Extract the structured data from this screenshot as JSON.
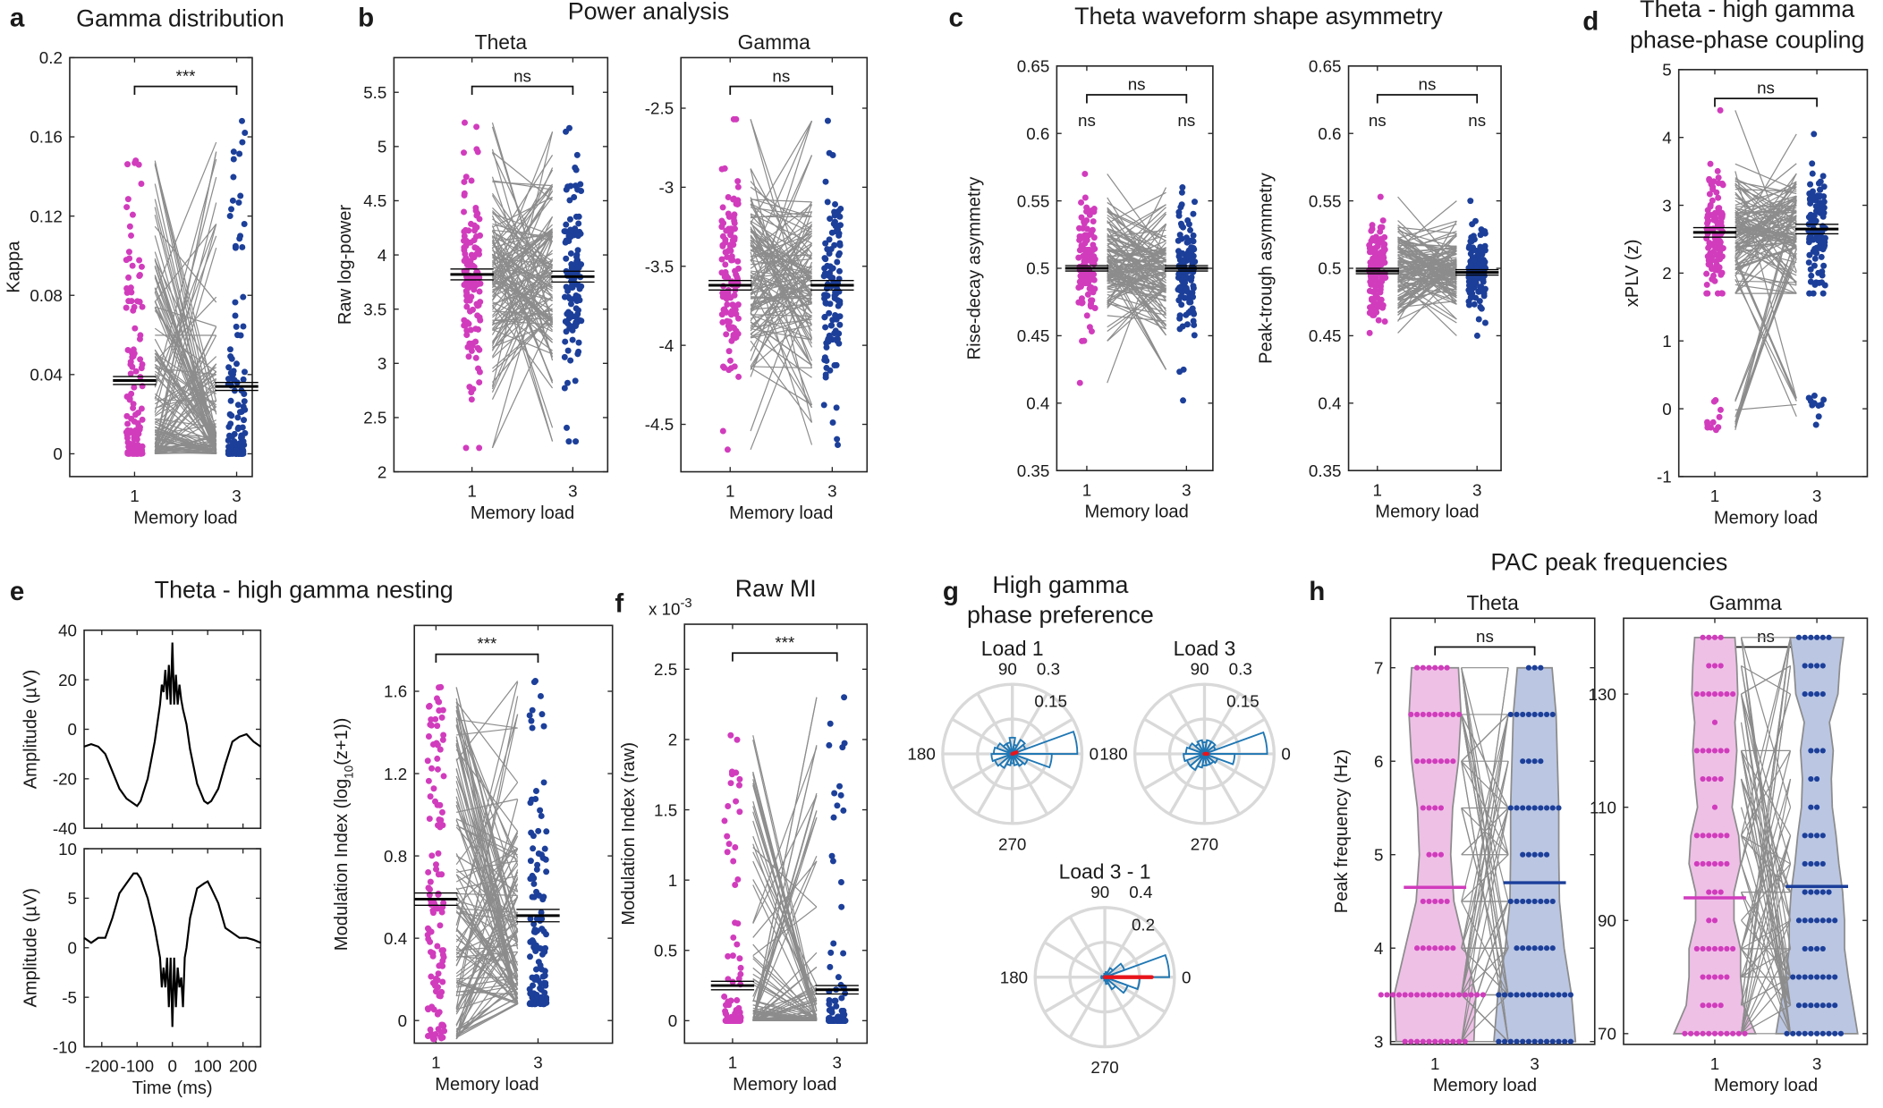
{
  "colors": {
    "load1": "#d13cbd",
    "load3": "#1c3f9a",
    "pair_line": "#8c8c8c",
    "mean_line": "#000000",
    "rose": "#1f77b4",
    "resultant": "#e8141b",
    "polar_grid": "#d9d9d9",
    "violin1": "#eec0e6",
    "violin3": "#bac6e2"
  },
  "chart_data": [
    {
      "panel": "a",
      "type": "scatter",
      "title": "Gamma distribution",
      "xlabel": "Memory load",
      "ylabel": "Kappa",
      "categories": [
        "1",
        "3"
      ],
      "ylim": [
        -0.0115,
        0.2
      ],
      "yticks": [
        0,
        0.04,
        0.08,
        0.12,
        0.16,
        0.2
      ],
      "ytick_labels": [
        "0",
        "0.04",
        "0.08",
        "0.12",
        "0.16",
        "0.2"
      ],
      "significance": "***",
      "groups": [
        {
          "load": "1",
          "mean": 0.037,
          "sem": 0.002,
          "range": [
            0,
            0.148
          ]
        },
        {
          "load": "3",
          "mean": 0.034,
          "sem": 0.002,
          "range": [
            0,
            0.168
          ]
        }
      ]
    },
    {
      "panel": "b",
      "type": "scatter",
      "group_title": "Power analysis",
      "subtitle": "Theta",
      "xlabel": "Memory load",
      "ylabel": "Raw log-power",
      "categories": [
        "1",
        "3"
      ],
      "ylim": [
        2,
        5.82
      ],
      "yticks": [
        2,
        2.5,
        3,
        3.5,
        4,
        4.5,
        5,
        5.5
      ],
      "ytick_labels": [
        "2",
        "2.5",
        "3",
        "3.5",
        "4",
        "4.5",
        "5",
        "5.5"
      ],
      "significance": "ns",
      "groups": [
        {
          "load": "1",
          "mean": 3.82,
          "sem": 0.05,
          "range": [
            2.22,
            5.22
          ]
        },
        {
          "load": "3",
          "mean": 3.8,
          "sem": 0.05,
          "range": [
            2.28,
            5.17
          ]
        }
      ]
    },
    {
      "type": "scatter",
      "subtitle": "Gamma",
      "xlabel": "Memory load",
      "ylabel": "",
      "categories": [
        "1",
        "3"
      ],
      "ylim": [
        -4.8,
        -2.18
      ],
      "yticks": [
        -4.5,
        -4,
        -3.5,
        -3,
        -2.5
      ],
      "ytick_labels": [
        "-4.5",
        "-4",
        "-3.5",
        "-3",
        "-2.5"
      ],
      "significance": "ns",
      "groups": [
        {
          "load": "1",
          "mean": -3.62,
          "sem": 0.03,
          "range": [
            -4.66,
            -2.57
          ]
        },
        {
          "load": "3",
          "mean": -3.62,
          "sem": 0.03,
          "range": [
            -4.63,
            -2.58
          ]
        }
      ]
    },
    {
      "panel": "c",
      "type": "scatter",
      "group_title": "Theta waveform shape asymmetry",
      "xlabel": "Memory load",
      "ylabel": "Rise-decay asymmetry",
      "categories": [
        "1",
        "3"
      ],
      "ylim": [
        0.35,
        0.65
      ],
      "yticks": [
        0.35,
        0.4,
        0.45,
        0.5,
        0.55,
        0.6,
        0.65
      ],
      "ytick_labels": [
        "0.35",
        "0.4",
        "0.45",
        "0.5",
        "0.55",
        "0.6",
        "0.65"
      ],
      "significance": "ns",
      "group_significance": [
        "ns",
        "ns"
      ],
      "groups": [
        {
          "load": "1",
          "mean": 0.5,
          "sem": 0.002,
          "range": [
            0.415,
            0.57
          ]
        },
        {
          "load": "3",
          "mean": 0.5,
          "sem": 0.002,
          "range": [
            0.402,
            0.56
          ]
        }
      ]
    },
    {
      "type": "scatter",
      "xlabel": "Memory load",
      "ylabel": "Peak-trough asymmetry",
      "categories": [
        "1",
        "3"
      ],
      "ylim": [
        0.35,
        0.65
      ],
      "yticks": [
        0.35,
        0.4,
        0.45,
        0.5,
        0.55,
        0.6,
        0.65
      ],
      "ytick_labels": [
        "0.35",
        "0.4",
        "0.45",
        "0.5",
        "0.55",
        "0.6",
        "0.65"
      ],
      "significance": "ns",
      "group_significance": [
        "ns",
        "ns"
      ],
      "groups": [
        {
          "load": "1",
          "mean": 0.498,
          "sem": 0.002,
          "range": [
            0.452,
            0.553
          ]
        },
        {
          "load": "3",
          "mean": 0.497,
          "sem": 0.002,
          "range": [
            0.45,
            0.55
          ]
        }
      ]
    },
    {
      "panel": "d",
      "type": "scatter",
      "title_lines": [
        "Theta - high gamma",
        "phase-phase coupling"
      ],
      "xlabel": "Memory load",
      "ylabel": "xPLV (z)",
      "categories": [
        "1",
        "3"
      ],
      "ylim": [
        -1,
        5
      ],
      "yticks": [
        -1,
        0,
        1,
        2,
        3,
        4,
        5
      ],
      "ytick_labels": [
        "-1",
        "0",
        "1",
        "2",
        "3",
        "4",
        "5"
      ],
      "significance": "ns",
      "groups": [
        {
          "load": "1",
          "mean": 2.6,
          "sem": 0.07,
          "range": [
            1.7,
            4.4
          ],
          "low_cluster_range": [
            -0.4,
            0.15
          ]
        },
        {
          "load": "3",
          "mean": 2.65,
          "sem": 0.07,
          "range": [
            1.7,
            4.05
          ],
          "low_cluster_range": [
            -0.25,
            0.22
          ]
        }
      ]
    },
    {
      "panel": "e",
      "type": "line",
      "group_title": "Theta - high gamma nesting",
      "xlabel": "",
      "ylabel": "Amplitude (µV)",
      "xlim": [
        -250,
        250
      ],
      "ylim": [
        -40,
        40
      ],
      "yticks": [
        -40,
        -20,
        0,
        20,
        40
      ],
      "ytick_labels": [
        "-40",
        "-20",
        "0",
        "20",
        "40"
      ],
      "x": [
        -250,
        -230,
        -210,
        -190,
        -170,
        -150,
        -130,
        -110,
        -100,
        -90,
        -70,
        -50,
        -40,
        -35,
        -30,
        -25,
        -20,
        -15,
        -10,
        -5,
        0,
        5,
        10,
        15,
        20,
        25,
        30,
        35,
        40,
        50,
        70,
        90,
        100,
        110,
        130,
        150,
        170,
        190,
        210,
        230,
        250
      ],
      "y": [
        -7,
        -6,
        -7,
        -10,
        -17,
        -24,
        -28,
        -30,
        -31,
        -29,
        -20,
        -5,
        5,
        10,
        18,
        15,
        24,
        12,
        26,
        10,
        35,
        10,
        22,
        10,
        18,
        12,
        8,
        5,
        2,
        -8,
        -22,
        -29,
        -30,
        -29,
        -24,
        -14,
        -5,
        -3,
        -2,
        -5,
        -7
      ]
    },
    {
      "type": "line",
      "xlabel": "Time (ms)",
      "ylabel": "Amplitude (µV)",
      "xlim": [
        -250,
        250
      ],
      "xticks": [
        -200,
        -100,
        0,
        100,
        200
      ],
      "xtick_labels": [
        "-200",
        "-100",
        "0",
        "100",
        "200"
      ],
      "ylim": [
        -10,
        10
      ],
      "yticks": [
        -10,
        -5,
        0,
        5,
        10
      ],
      "ytick_labels": [
        "-10",
        "-5",
        "0",
        "5",
        "10"
      ],
      "x": [
        -250,
        -230,
        -210,
        -190,
        -170,
        -150,
        -130,
        -110,
        -100,
        -90,
        -70,
        -50,
        -40,
        -35,
        -30,
        -25,
        -20,
        -15,
        -10,
        -5,
        0,
        5,
        10,
        15,
        20,
        25,
        30,
        35,
        40,
        50,
        70,
        90,
        100,
        110,
        130,
        150,
        170,
        190,
        210,
        230,
        250
      ],
      "y": [
        1,
        0.5,
        1,
        1,
        3,
        5.5,
        6.5,
        7.5,
        7.5,
        7,
        5,
        2,
        0,
        -1,
        -4,
        -2,
        -4,
        -1,
        -6,
        -1,
        -8,
        -1,
        -6,
        -2,
        -4,
        -3,
        -6,
        -1,
        0,
        3,
        6,
        6.5,
        6.7,
        6,
        4.5,
        2,
        1.5,
        1,
        1,
        0.8,
        0.5
      ]
    },
    {
      "type": "scatter",
      "xlabel": "Memory load",
      "ylabel_prefix": "Modulation Index (log",
      "ylabel_sub": "10",
      "ylabel_suffix": "(z+1))",
      "categories": [
        "1",
        "3"
      ],
      "ylim": [
        -0.11,
        1.92
      ],
      "yticks": [
        0,
        0.4,
        0.8,
        1.2,
        1.6
      ],
      "ytick_labels": [
        "0",
        "0.4",
        "0.8",
        "1.2",
        "1.6"
      ],
      "significance": "***",
      "groups": [
        {
          "load": "1",
          "mean": 0.59,
          "sem": 0.03,
          "range": [
            -0.09,
            1.62
          ]
        },
        {
          "load": "3",
          "mean": 0.51,
          "sem": 0.03,
          "range": [
            0.08,
            1.65
          ]
        }
      ]
    },
    {
      "panel": "f",
      "type": "scatter",
      "title": "Raw MI",
      "multiplier": "x 10",
      "multiplier_exp": "-3",
      "xlabel": "Memory load",
      "ylabel": "Modulation Index (raw)",
      "categories": [
        "1",
        "3"
      ],
      "ylim": [
        -0.16,
        2.82
      ],
      "yticks": [
        0,
        0.5,
        1,
        1.5,
        2,
        2.5
      ],
      "ytick_labels": [
        "0",
        "0.5",
        "1",
        "1.5",
        "2",
        "2.5"
      ],
      "significance": "***",
      "groups": [
        {
          "load": "1",
          "mean": 0.25,
          "sem": 0.03,
          "range": [
            0.0,
            2.03
          ]
        },
        {
          "load": "3",
          "mean": 0.22,
          "sem": 0.03,
          "range": [
            0.0,
            2.3
          ]
        }
      ]
    },
    {
      "panel": "g",
      "type": "polar",
      "title_lines": [
        "High gamma",
        "phase preference"
      ],
      "subtitle": "Load 1",
      "rlim": 0.3,
      "angle_labels": [
        "0",
        "90",
        "180",
        "270"
      ],
      "r_labels": [
        "0.15",
        "0.3"
      ],
      "bin_width_deg": 20,
      "values": [
        0.28,
        0.06,
        0.07,
        0.04,
        0.07,
        0.05,
        0.05,
        0.07,
        0.08,
        0.09,
        0.08,
        0.07,
        0.05,
        0.04,
        0.05,
        0.06,
        0.07,
        0.17
      ],
      "resultant": {
        "angle_deg": 20,
        "length": 0.02
      }
    },
    {
      "type": "polar",
      "subtitle": "Load 3",
      "rlim": 0.3,
      "angle_labels": [
        "0",
        "90",
        "180",
        "270"
      ],
      "r_labels": [
        "0.15",
        "0.3"
      ],
      "bin_width_deg": 20,
      "values": [
        0.27,
        0.05,
        0.06,
        0.06,
        0.05,
        0.06,
        0.05,
        0.07,
        0.08,
        0.09,
        0.08,
        0.08,
        0.06,
        0.05,
        0.05,
        0.05,
        0.06,
        0.13
      ],
      "resultant": {
        "angle_deg": 0,
        "length": 0.01
      }
    },
    {
      "type": "polar",
      "subtitle": "Load 3 - 1",
      "rlim": 0.4,
      "angle_labels": [
        "0",
        "90",
        "180",
        "270"
      ],
      "r_labels": [
        "0.2",
        "0.4"
      ],
      "bin_width_deg": 20,
      "values": [
        0.37,
        0.12,
        0.06,
        0.03,
        0.02,
        0.01,
        0.01,
        0.01,
        0.02,
        0.02,
        0.01,
        0.01,
        0.01,
        0.02,
        0.04,
        0.08,
        0.14,
        0.2
      ],
      "resultant": {
        "angle_deg": 0,
        "length": 0.27
      }
    },
    {
      "panel": "h",
      "type": "violin",
      "group_title": "PAC peak frequencies",
      "subtitle": "Theta",
      "xlabel": "Memory load",
      "ylabel": "Peak frequency (Hz)",
      "categories": [
        "1",
        "3"
      ],
      "ylim": [
        2.97,
        7.53
      ],
      "yticks": [
        3,
        4,
        5,
        6,
        7
      ],
      "ytick_labels": [
        "3",
        "4",
        "5",
        "6",
        "7"
      ],
      "significance": "ns",
      "level_step": 0.5,
      "groups": [
        {
          "load": "1",
          "mean": 4.65,
          "range": [
            3,
            7
          ]
        },
        {
          "load": "3",
          "mean": 4.7,
          "range": [
            3,
            7
          ]
        }
      ]
    },
    {
      "type": "violin",
      "subtitle": "Gamma",
      "xlabel": "Memory load",
      "ylabel": "",
      "categories": [
        "1",
        "3"
      ],
      "ylim": [
        68.1,
        143.4
      ],
      "yticks": [
        70,
        90,
        110,
        130
      ],
      "ytick_labels": [
        "70",
        "90",
        "110",
        "130"
      ],
      "significance": "ns",
      "level_step": 5,
      "groups": [
        {
          "load": "1",
          "mean": 94,
          "range": [
            70,
            140
          ]
        },
        {
          "load": "3",
          "mean": 96,
          "range": [
            70,
            140
          ]
        }
      ]
    }
  ]
}
